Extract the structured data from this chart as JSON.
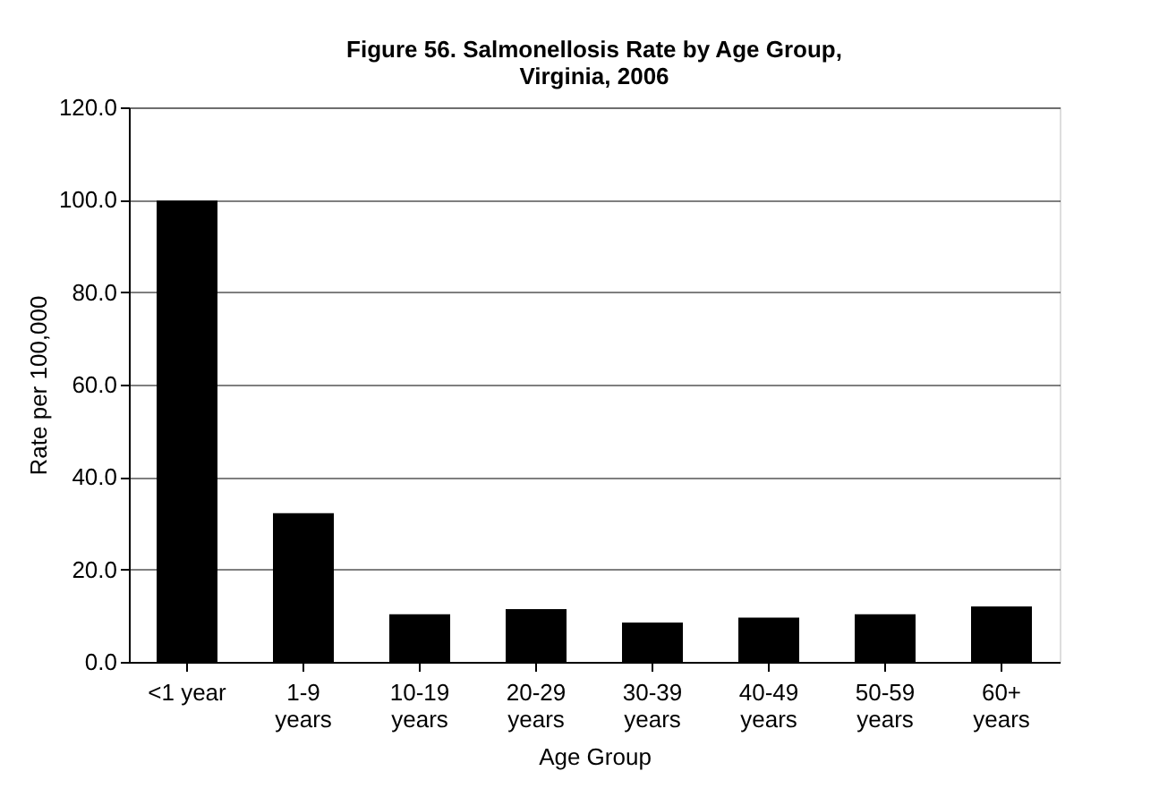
{
  "chart_data": {
    "type": "bar",
    "title": "Figure 56. Salmonellosis Rate by Age Group,\nVirginia, 2006",
    "xlabel": "Age Group",
    "ylabel": "Rate per 100,000",
    "categories": [
      "<1 year",
      "1-9\nyears",
      "10-19\nyears",
      "20-29\nyears",
      "30-39\nyears",
      "40-49\nyears",
      "50-59\nyears",
      "60+\nyears"
    ],
    "values": [
      99.8,
      32.2,
      10.3,
      11.4,
      8.5,
      9.6,
      10.3,
      12.0
    ],
    "color": "#000000",
    "ylim": [
      0,
      120
    ],
    "yticks": [
      {
        "value": 0,
        "label": "0.0"
      },
      {
        "value": 20,
        "label": "20.0"
      },
      {
        "value": 40,
        "label": "40.0"
      },
      {
        "value": 60,
        "label": "60.0"
      },
      {
        "value": 80,
        "label": "80.0"
      },
      {
        "value": 100,
        "label": "100.0"
      },
      {
        "value": 120,
        "label": "120.0"
      }
    ],
    "grid": "y"
  }
}
